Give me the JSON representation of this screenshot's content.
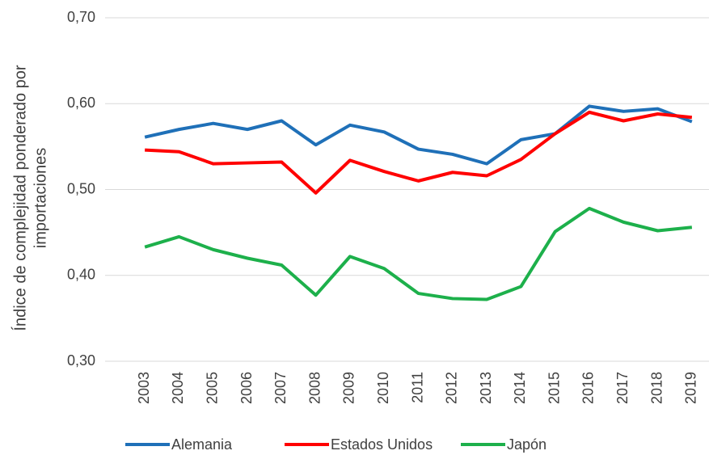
{
  "chart_data": {
    "type": "line",
    "y_label": [
      "Índice de complejidad ponderado por",
      "importaciones"
    ],
    "categories": [
      "2003",
      "2004",
      "2005",
      "2006",
      "2007",
      "2008",
      "2009",
      "2010",
      "2011",
      "2012",
      "2013",
      "2014",
      "2015",
      "2016",
      "2017",
      "2018",
      "2019"
    ],
    "series": [
      {
        "name": "Alemania",
        "color": "#1f70b8",
        "values": [
          0.561,
          0.57,
          0.577,
          0.57,
          0.58,
          0.552,
          0.575,
          0.567,
          0.547,
          0.541,
          0.53,
          0.558,
          0.565,
          0.597,
          0.591,
          0.594,
          0.579
        ]
      },
      {
        "name": "Estados Unidos",
        "color": "#ff0000",
        "values": [
          0.546,
          0.544,
          0.53,
          0.531,
          0.532,
          0.496,
          0.534,
          0.521,
          0.51,
          0.52,
          0.516,
          0.535,
          0.565,
          0.59,
          0.58,
          0.588,
          0.584
        ]
      },
      {
        "name": "Japón",
        "color": "#1db04b",
        "values": [
          0.433,
          0.445,
          0.43,
          0.42,
          0.412,
          0.377,
          0.422,
          0.408,
          0.379,
          0.373,
          0.372,
          0.387,
          0.451,
          0.478,
          0.462,
          0.452,
          0.456
        ]
      }
    ],
    "ylim": [
      0.3,
      0.7
    ],
    "yticks": [
      {
        "value": 0.3,
        "label": "0,30"
      },
      {
        "value": 0.4,
        "label": "0,40"
      },
      {
        "value": 0.5,
        "label": "0,50"
      },
      {
        "value": 0.6,
        "label": "0,60"
      },
      {
        "value": 0.7,
        "label": "0,70"
      }
    ],
    "grid": true,
    "legend": "bottom"
  }
}
